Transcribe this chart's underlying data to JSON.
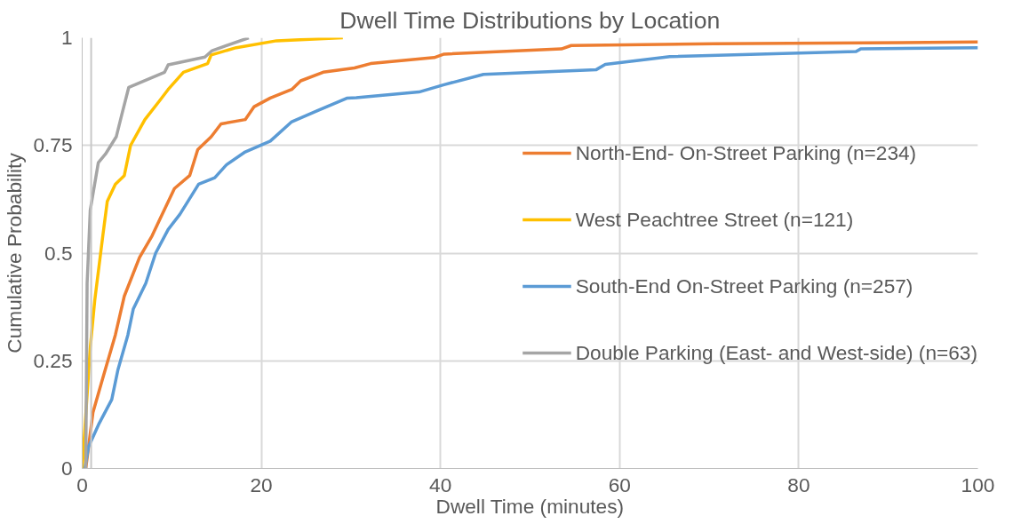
{
  "chart_data": {
    "type": "line",
    "title": "Dwell Time Distributions by Location",
    "xlabel": "Dwell Time (minutes)",
    "ylabel": "Cumulative Probability",
    "xlim": [
      0,
      100
    ],
    "xticks": [
      0,
      20,
      40,
      60,
      80,
      100
    ],
    "ylim": [
      0,
      1
    ],
    "yticks": [
      0,
      0.25,
      0.5,
      0.75,
      1
    ],
    "grid": true,
    "legend": "right",
    "line_style": "solid",
    "marker": "none",
    "ref_lines": [
      {
        "axis": "x",
        "value": 1,
        "color": "#c8c8c8"
      }
    ],
    "series": [
      {
        "name": "North-End- On-Street Parking (n=234)",
        "color": "#ed7d31",
        "x": [
          0.4,
          1.2,
          2.3,
          3.7,
          4.7,
          6.4,
          7.8,
          8.7,
          10.3,
          12.0,
          12.9,
          14.4,
          15.5,
          18.2,
          19.2,
          21.0,
          23.4,
          24.4,
          26.9,
          30.4,
          32.2,
          39.3,
          40.4,
          53.5,
          54.6,
          70.5,
          100
        ],
        "values": [
          0,
          0.13,
          0.21,
          0.31,
          0.4,
          0.49,
          0.54,
          0.58,
          0.65,
          0.68,
          0.74,
          0.77,
          0.8,
          0.81,
          0.84,
          0.86,
          0.88,
          0.9,
          0.92,
          0.93,
          0.94,
          0.954,
          0.962,
          0.974,
          0.982,
          0.986,
          0.99
        ]
      },
      {
        "name": "West Peachtree Street (n=121)",
        "color": "#ffc000",
        "x": [
          0,
          0.9,
          1.4,
          2.3,
          2.8,
          3.7,
          4.7,
          5.4,
          7.0,
          8.5,
          9.6,
          11.3,
          14.0,
          14.4,
          17.2,
          21.7,
          29.1
        ],
        "values": [
          0,
          0.28,
          0.39,
          0.54,
          0.62,
          0.66,
          0.68,
          0.75,
          0.81,
          0.85,
          0.88,
          0.92,
          0.94,
          0.96,
          0.977,
          0.993,
          1
        ]
      },
      {
        "name": "South-End On-Street Parking (n=257)",
        "color": "#5b9bd5",
        "x": [
          0.3,
          0.7,
          1.9,
          3.3,
          4.0,
          5.1,
          5.7,
          7.1,
          8.2,
          9.6,
          10.9,
          13.0,
          14.8,
          16.1,
          18.2,
          21.0,
          23.4,
          26.2,
          29.6,
          30.6,
          37.6,
          40.4,
          44.8,
          57.4,
          58.4,
          65.6,
          86.4,
          86.9,
          100
        ],
        "values": [
          0,
          0.05,
          0.105,
          0.16,
          0.23,
          0.31,
          0.37,
          0.43,
          0.5,
          0.555,
          0.59,
          0.66,
          0.675,
          0.705,
          0.735,
          0.76,
          0.805,
          0.83,
          0.86,
          0.861,
          0.874,
          0.891,
          0.915,
          0.926,
          0.938,
          0.956,
          0.968,
          0.974,
          0.977
        ]
      },
      {
        "name": "Double Parking (East- and West-side) (n=63)",
        "color": "#a5a5a5",
        "x": [
          0.4,
          0.55,
          0.9,
          1.8,
          2.6,
          3.8,
          4.4,
          5.2,
          9.2,
          9.6,
          13.7,
          14.5,
          18.6
        ],
        "values": [
          0,
          0.43,
          0.6,
          0.71,
          0.73,
          0.77,
          0.82,
          0.885,
          0.92,
          0.937,
          0.955,
          0.97,
          1
        ]
      }
    ]
  }
}
